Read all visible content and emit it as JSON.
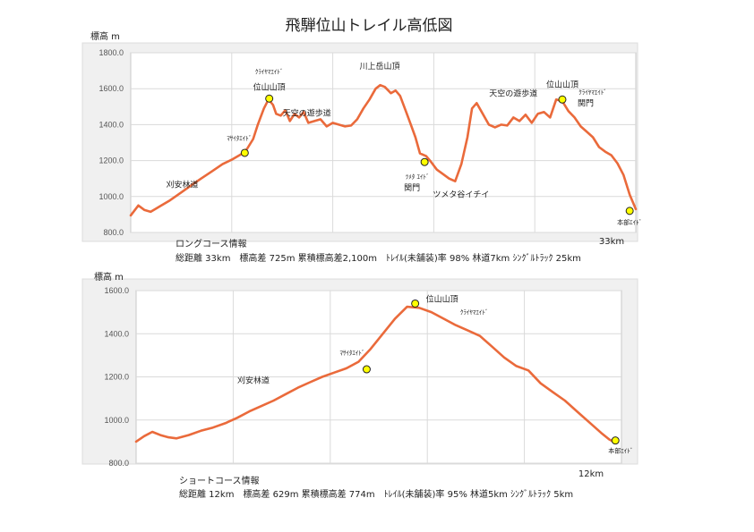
{
  "page_title": "飛騨位山トレイル高低図",
  "chart_data": [
    {
      "type": "line",
      "name": "long",
      "ylabel": "標高 m",
      "ylim": [
        800,
        1800
      ],
      "yticks": [
        "800.0",
        "1000.0",
        "1200.0",
        "1400.0",
        "1600.0",
        "1800.0"
      ],
      "xlim": [
        0,
        33
      ],
      "end_label": "33km",
      "x": [
        0,
        0.5,
        0.9,
        1.3,
        1.6,
        2.0,
        2.5,
        3.0,
        3.5,
        4.0,
        4.6,
        5.3,
        6.0,
        6.6,
        7.3,
        7.6,
        8.0,
        8.3,
        8.7,
        9.0,
        9.3,
        9.5,
        9.8,
        10.1,
        10.4,
        10.7,
        11.0,
        11.3,
        11.6,
        12.0,
        12.4,
        12.8,
        13.2,
        13.6,
        14.0,
        14.4,
        14.8,
        15.2,
        15.6,
        16.0,
        16.3,
        16.6,
        17.0,
        17.3,
        17.6,
        18.0,
        18.3,
        18.6,
        18.9,
        19.3,
        19.6,
        20.0,
        20.4,
        20.8,
        21.2,
        21.6,
        22.0,
        22.3,
        22.6,
        23.0,
        23.4,
        23.8,
        24.2,
        24.6,
        25.0,
        25.4,
        25.8,
        26.2,
        26.6,
        27.0,
        27.4,
        27.8,
        28.2,
        28.6,
        29.0,
        29.4,
        29.8,
        30.2,
        30.6,
        31.0,
        31.4,
        31.8,
        32.2,
        32.6,
        33.0
      ],
      "y": [
        895,
        950,
        925,
        915,
        930,
        950,
        975,
        1005,
        1035,
        1065,
        1100,
        1140,
        1180,
        1205,
        1240,
        1265,
        1320,
        1400,
        1490,
        1540,
        1510,
        1460,
        1450,
        1480,
        1420,
        1460,
        1440,
        1470,
        1410,
        1420,
        1430,
        1390,
        1410,
        1400,
        1390,
        1395,
        1430,
        1490,
        1540,
        1600,
        1620,
        1610,
        1575,
        1590,
        1560,
        1470,
        1400,
        1330,
        1240,
        1225,
        1195,
        1150,
        1125,
        1100,
        1085,
        1180,
        1330,
        1490,
        1520,
        1460,
        1400,
        1385,
        1400,
        1395,
        1440,
        1420,
        1455,
        1410,
        1460,
        1470,
        1440,
        1540,
        1530,
        1475,
        1440,
        1390,
        1360,
        1330,
        1275,
        1250,
        1230,
        1185,
        1120,
        1010,
        930
      ],
      "annotations": [
        {
          "text": "刈安林道",
          "x": 5.0,
          "y": 1150,
          "size": "normal",
          "dx": -28,
          "dy": 20,
          "marker": false
        },
        {
          "text": "ﾏｻｲﾀｴｲﾄﾞ",
          "x": 7.45,
          "y": 1243,
          "size": "small",
          "dx": -6,
          "dy": -14,
          "marker": true
        },
        {
          "text": "ｸﾗｲﾔﾏｴｲﾄﾞ",
          "x": 9.05,
          "y": 1545,
          "size": "small",
          "dx": 0,
          "dy": -28,
          "marker": false
        },
        {
          "text": "位山山頂",
          "x": 9.05,
          "y": 1545,
          "size": "normal",
          "dx": 0,
          "dy": -10,
          "marker": true
        },
        {
          "text": "天空の遊歩道",
          "x": 12.8,
          "y": 1450,
          "size": "normal",
          "dx": -22,
          "dy": 0,
          "marker": false
        },
        {
          "text": "川上岳山頂",
          "x": 16.5,
          "y": 1620,
          "size": "normal",
          "dx": -4,
          "dy": -18,
          "marker": false
        },
        {
          "text": "ﾂﾒﾀ ｴｲﾄﾞ",
          "x": 19.2,
          "y": 1192,
          "size": "small",
          "dx": -8,
          "dy": 19,
          "marker": true
        },
        {
          "text": "関門",
          "x": 19.2,
          "y": 1192,
          "size": "normal",
          "dx": -14,
          "dy": 32,
          "marker": false
        },
        {
          "text": "ツメタ谷イチイ",
          "x": 21.0,
          "y": 1085,
          "size": "normal",
          "dx": 10,
          "dy": 18,
          "marker": false
        },
        {
          "text": "天空の遊歩道",
          "x": 25.0,
          "y": 1480,
          "size": "normal",
          "dx": 0,
          "dy": -16,
          "marker": false
        },
        {
          "text": "位山山頂",
          "x": 33.0,
          "y": 1540,
          "size": "normal",
          "dx": 0,
          "dy": 0,
          "marker": false,
          "anchor_x": 28.2,
          "anchor_y": 1540,
          "adx": 0,
          "ady": -14
        },
        {
          "text": "ｸﾗｲﾔﾏｴｲﾄﾞ",
          "x": 28.2,
          "y": 1540,
          "size": "small",
          "dx": 34,
          "dy": -6,
          "marker": true
        },
        {
          "text": "関門",
          "x": 28.2,
          "y": 1540,
          "size": "normal",
          "dx": 26,
          "dy": 7,
          "marker": false
        },
        {
          "text": "本部ｴｲﾄﾞ",
          "x": 32.6,
          "y": 920,
          "size": "small",
          "dx": 0,
          "dy": 15,
          "marker": true
        }
      ]
    },
    {
      "type": "line",
      "name": "short",
      "ylabel": "標高 m",
      "ylim": [
        800,
        1600
      ],
      "yticks": [
        "800.0",
        "1000.0",
        "1200.0",
        "1400.0",
        "1600.0"
      ],
      "xlim": [
        0,
        12
      ],
      "end_label": "12km",
      "x": [
        0,
        0.2,
        0.4,
        0.6,
        0.8,
        1.0,
        1.3,
        1.6,
        1.9,
        2.2,
        2.5,
        2.8,
        3.1,
        3.4,
        3.7,
        4.0,
        4.3,
        4.6,
        4.9,
        5.2,
        5.5,
        5.8,
        6.1,
        6.4,
        6.7,
        7.0,
        7.3,
        7.6,
        7.9,
        8.2,
        8.5,
        8.8,
        9.1,
        9.4,
        9.7,
        10.0,
        10.3,
        10.6,
        10.9,
        11.2,
        11.5,
        11.7,
        11.85
      ],
      "y": [
        900,
        925,
        945,
        930,
        920,
        915,
        930,
        950,
        965,
        985,
        1010,
        1040,
        1065,
        1090,
        1120,
        1150,
        1175,
        1200,
        1220,
        1240,
        1270,
        1330,
        1400,
        1470,
        1525,
        1520,
        1500,
        1470,
        1440,
        1415,
        1390,
        1340,
        1290,
        1250,
        1230,
        1170,
        1130,
        1090,
        1040,
        990,
        940,
        910,
        895
      ],
      "annotations": [
        {
          "text": "刈安林道",
          "x": 3.3,
          "y": 1080,
          "size": "normal",
          "dx": -18,
          "dy": -22,
          "marker": false
        },
        {
          "text": "ﾏｻｲﾀｴｲﾄﾞ",
          "x": 5.7,
          "y": 1235,
          "size": "small",
          "dx": -16,
          "dy": -16,
          "marker": true
        },
        {
          "text": "位山山頂",
          "x": 6.9,
          "y": 1540,
          "size": "normal",
          "dx": 30,
          "dy": -2,
          "marker": true
        },
        {
          "text": "ｸﾗｲﾔﾏｴｲﾄﾞ",
          "x": 6.9,
          "y": 1540,
          "size": "small",
          "dx": 66,
          "dy": 12,
          "marker": false
        },
        {
          "text": "本部ｴｲﾄﾞ",
          "x": 11.85,
          "y": 905,
          "size": "small",
          "dx": 6,
          "dy": 14,
          "marker": true
        }
      ]
    }
  ],
  "info": {
    "long": {
      "heading": "ロングコース情報",
      "detail": "総距離 33km　標高差 725m  累積標高差2,100m　ﾄﾚｲﾙ(未舗装)率 98%  林道7km  ｼﾝｸﾞﾙﾄﾗｯｸ 25km"
    },
    "short": {
      "heading": "ショートコース情報",
      "detail": "総距離 12km　標高差 629m  累積標高差 774m　ﾄﾚｲﾙ(未舗装)率 95%   林道5km  ｼﾝｸﾞﾙﾄﾗｯｸ 5km"
    }
  }
}
